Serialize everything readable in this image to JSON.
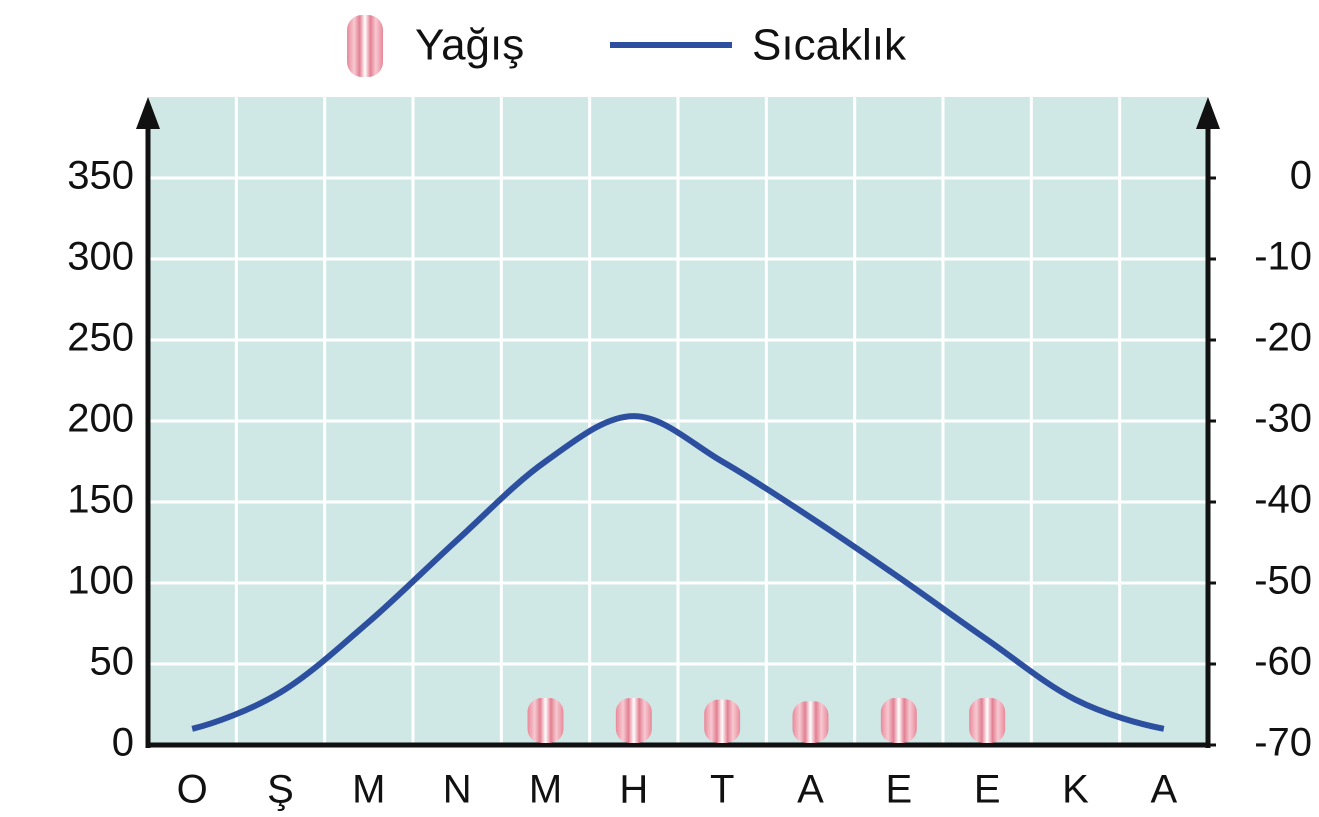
{
  "chart_data": {
    "type": "bar",
    "categories": [
      "O",
      "Ş",
      "M",
      "N",
      "M",
      "H",
      "T",
      "A",
      "E",
      "E",
      "K",
      "A"
    ],
    "series": [
      {
        "name": "Yağış",
        "type": "bar",
        "color": "#e8899a",
        "values": [
          0,
          0,
          0,
          0,
          29,
          29,
          28,
          27,
          29,
          29,
          0,
          0
        ]
      },
      {
        "name": "Sıcaklık",
        "type": "line",
        "axis": "y2",
        "color": "#2d4fa0",
        "values": [
          -68,
          -63.5,
          -54.8,
          -44.7,
          -35,
          -29.4,
          -35,
          -41.9,
          -49.3,
          -57,
          -64.4,
          -68
        ]
      }
    ],
    "ylim": [
      0,
      400
    ],
    "yticks": [
      0,
      50,
      100,
      150,
      200,
      250,
      300,
      350
    ],
    "y2lim": [
      -70,
      10
    ],
    "y2ticks": [
      -70,
      -60,
      -50,
      -40,
      -30,
      -20,
      -10,
      0
    ],
    "grid": true,
    "background": "#cfe8e6",
    "legend": "top"
  }
}
